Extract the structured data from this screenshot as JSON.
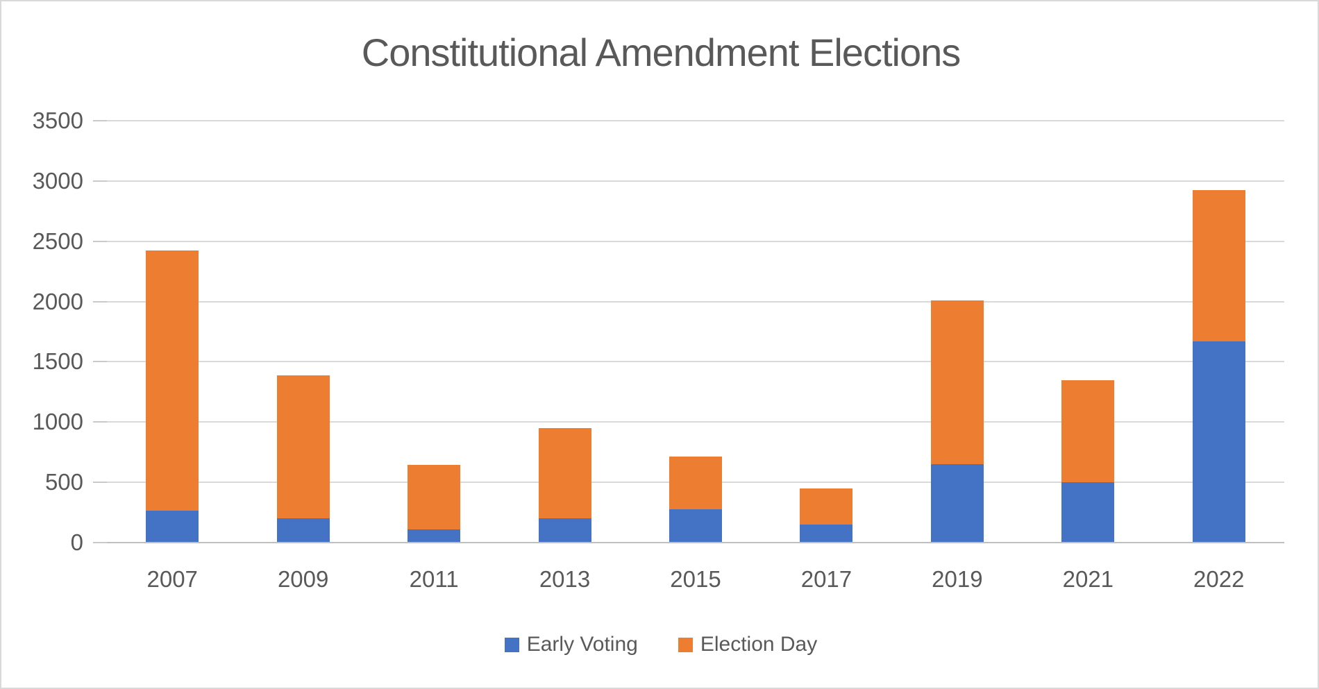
{
  "title": "Constitutional Amendment Elections",
  "colors": {
    "early_voting": "#4472C4",
    "election_day": "#ED7D31",
    "text": "#595959",
    "gridline": "#D9D9D9",
    "axis_line": "#BFBFBF",
    "background": "#FFFFFF"
  },
  "chart_data": {
    "type": "bar",
    "stacked": true,
    "title": "Constitutional Amendment Elections",
    "categories": [
      "2007",
      "2009",
      "2011",
      "2013",
      "2015",
      "2017",
      "2019",
      "2021",
      "2022"
    ],
    "series": [
      {
        "name": "Early Voting",
        "color": "#4472C4",
        "values": [
          265,
          200,
          110,
          200,
          275,
          150,
          650,
          500,
          1670
        ]
      },
      {
        "name": "Election Day",
        "color": "#ED7D31",
        "values": [
          2160,
          1185,
          535,
          750,
          440,
          300,
          1360,
          845,
          1255
        ]
      }
    ],
    "stacked_totals": [
      2425,
      1385,
      645,
      950,
      715,
      450,
      2010,
      1345,
      2925
    ],
    "xlabel": "",
    "ylabel": "",
    "ylim": [
      0,
      3500
    ],
    "ytick_step": 500,
    "yticks": [
      "0",
      "500",
      "1000",
      "1500",
      "2000",
      "2500",
      "3000",
      "3500"
    ],
    "grid": true,
    "legend_position": "bottom"
  }
}
